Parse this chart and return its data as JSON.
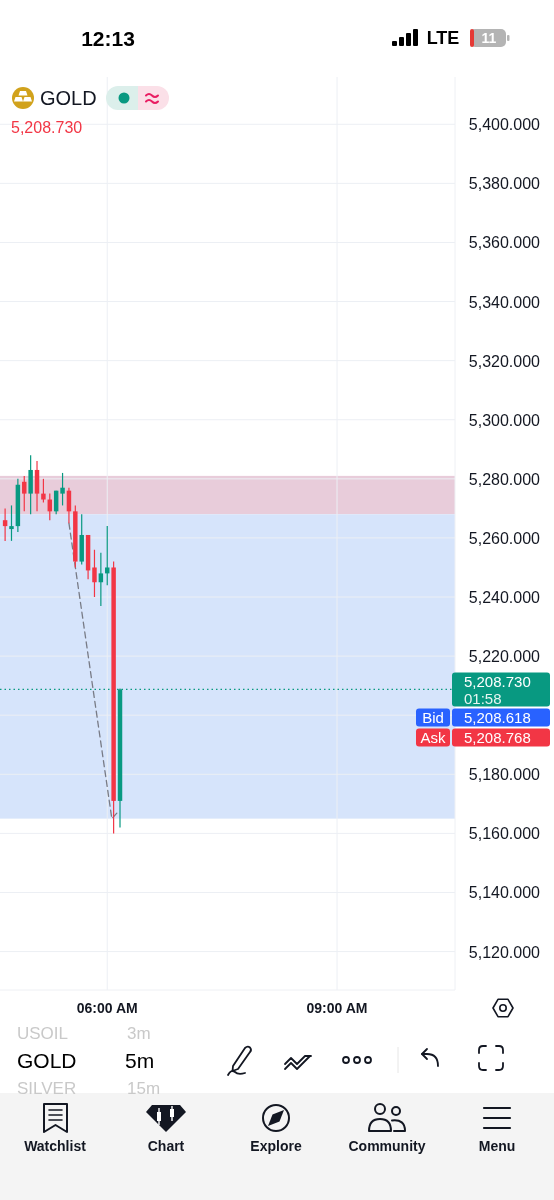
{
  "chart_data": {
    "type": "candlestick",
    "title": "GOLD",
    "subtitle": "5,208.730",
    "x": [
      4.6667,
      4.75,
      4.8333,
      4.9167,
      5,
      5.0833,
      5.1667,
      5.25,
      5.3333,
      5.4167,
      5.5,
      5.5833,
      5.6667,
      5.75,
      5.8333,
      5.9167,
      6,
      6.0833,
      6.1667
    ],
    "ohlc": [
      [
        5266,
        5270,
        5259,
        5264
      ],
      [
        5263,
        5271,
        5259,
        5264
      ],
      [
        5264,
        5280,
        5262,
        5278
      ],
      [
        5279,
        5281,
        5269,
        5275
      ],
      [
        5275,
        5288,
        5268,
        5283
      ],
      [
        5283,
        5286,
        5269,
        5275
      ],
      [
        5275,
        5280,
        5272,
        5273
      ],
      [
        5273,
        5275,
        5266,
        5269
      ],
      [
        5269,
        5276,
        5268,
        5276
      ],
      [
        5275,
        5282,
        5271,
        5277
      ],
      [
        5276,
        5277,
        5265,
        5269
      ],
      [
        5269,
        5271,
        5250,
        5252
      ],
      [
        5252,
        5268,
        5251,
        5261
      ],
      [
        5261,
        5261,
        5246,
        5249
      ],
      [
        5250,
        5256,
        5240,
        5245
      ],
      [
        5245,
        5255,
        5237,
        5248
      ],
      [
        5248,
        5264,
        5244,
        5250
      ],
      [
        5250,
        5252,
        5160,
        5171
      ],
      [
        5171,
        5209,
        5162,
        5208.73
      ]
    ],
    "colors": [
      "#f23645",
      "#089981",
      "#089981",
      "#f23645",
      "#089981",
      "#f23645",
      "#f23645",
      "#f23645",
      "#089981",
      "#089981",
      "#f23645",
      "#f23645",
      "#089981",
      "#f23645",
      "#f23645",
      "#089981",
      "#089981",
      "#f23645",
      "#089981"
    ],
    "series": [
      {
        "type": "line",
        "x": [
          5.5,
          6.06,
          6.13
        ],
        "values": [
          5265,
          5165,
          5167
        ],
        "color": "#787b86",
        "line_style": "dashed"
      }
    ],
    "xlim": [
      4.6,
      10.54
    ],
    "ylim": [
      5107,
      5416
    ],
    "xticks": [
      {
        "value": 6,
        "label": "06:00 AM"
      },
      {
        "value": 9,
        "label": "09:00 AM"
      }
    ],
    "yticks": [
      {
        "value": 5120,
        "label": "5,120.000"
      },
      {
        "value": 5140,
        "label": "5,140.000"
      },
      {
        "value": 5160,
        "label": "5,160.000"
      },
      {
        "value": 5180,
        "label": "5,180.000"
      },
      {
        "value": 5200,
        "label": null
      },
      {
        "value": 5220,
        "label": "5,220.000"
      },
      {
        "value": 5240,
        "label": "5,240.000"
      },
      {
        "value": 5260,
        "label": "5,260.000"
      },
      {
        "value": 5280,
        "label": "5,280.000"
      },
      {
        "value": 5300,
        "label": "5,300.000"
      },
      {
        "value": 5320,
        "label": "5,320.000"
      },
      {
        "value": 5340,
        "label": "5,340.000"
      },
      {
        "value": 5360,
        "label": "5,360.000"
      },
      {
        "value": 5380,
        "label": "5,380.000"
      },
      {
        "value": 5400,
        "label": "5,400.000"
      }
    ],
    "grid": true,
    "bands": [
      {
        "axis": "y",
        "from": 5268,
        "to": 5281,
        "color": "#e8ccda"
      },
      {
        "axis": "y",
        "from": 5165,
        "to": 5268,
        "color": "#d6e4fb"
      }
    ],
    "ref_lines": [
      {
        "axis": "y",
        "value": 5208.73,
        "label": "5,208.730",
        "color": "#089981",
        "line_style": "dotted"
      }
    ],
    "annotations": [
      "12:13",
      "LTE",
      "11",
      "USOIL",
      "3m",
      "GOLD",
      "5m",
      "SILVER",
      "15m",
      "Watchlist",
      "Chart",
      "Explore",
      "Community",
      "Menu",
      "01:58",
      "Bid",
      "5,208.618",
      "Ask",
      "5,208.768"
    ]
  }
}
